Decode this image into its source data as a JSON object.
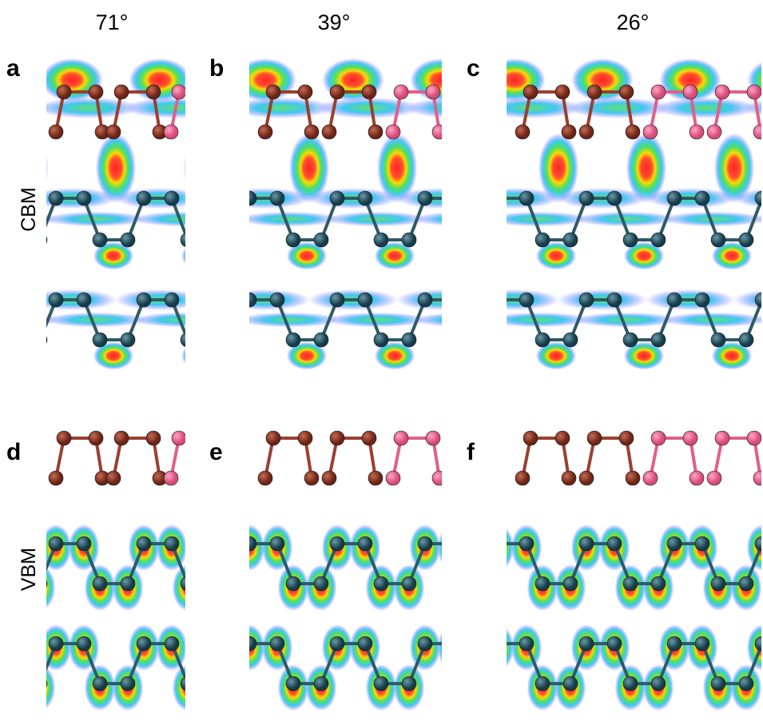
{
  "columns": [
    "71°",
    "39°",
    "26°"
  ],
  "rows": [
    "CBM",
    "VBM"
  ],
  "panels": [
    "a",
    "b",
    "c",
    "d",
    "e",
    "f"
  ]
}
